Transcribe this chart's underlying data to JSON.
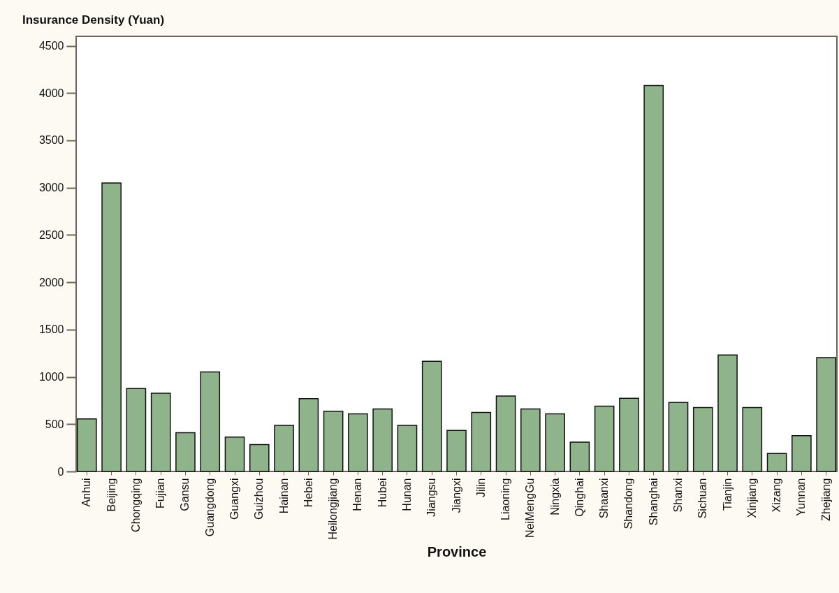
{
  "chart_data": {
    "type": "bar",
    "title": "Insurance Density (Yuan)",
    "xlabel": "Province",
    "categories": [
      "Anhui",
      "Beijing",
      "Chongqing",
      "Fujian",
      "Gansu",
      "Guangdong",
      "Guangxi",
      "Guizhou",
      "Hainan",
      "Hebei",
      "Heilongjiang",
      "Henan",
      "Hubei",
      "Hunan",
      "Jiangsu",
      "Jiangxi",
      "Jilin",
      "Liaoning",
      "NeiMengGu",
      "Ningxia",
      "Qinghai",
      "Shaanxi",
      "Shandong",
      "Shanghai",
      "Shanxi",
      "Sichuan",
      "Tianjin",
      "Xinjiang",
      "Xizang",
      "Yunnan",
      "Zhejiang"
    ],
    "values": [
      555,
      3050,
      877,
      827,
      409,
      1053,
      364,
      285,
      488,
      770,
      637,
      609,
      661,
      488,
      1164,
      433,
      624,
      797,
      661,
      609,
      311,
      691,
      773,
      4080,
      730,
      676,
      1231,
      676,
      191,
      379,
      1204
    ],
    "color": "#8fb38b",
    "ylim": [
      0,
      4600
    ],
    "yticks": [
      0,
      500,
      1000,
      1500,
      2000,
      2500,
      3000,
      3500,
      4000,
      4500
    ],
    "grid": false
  }
}
